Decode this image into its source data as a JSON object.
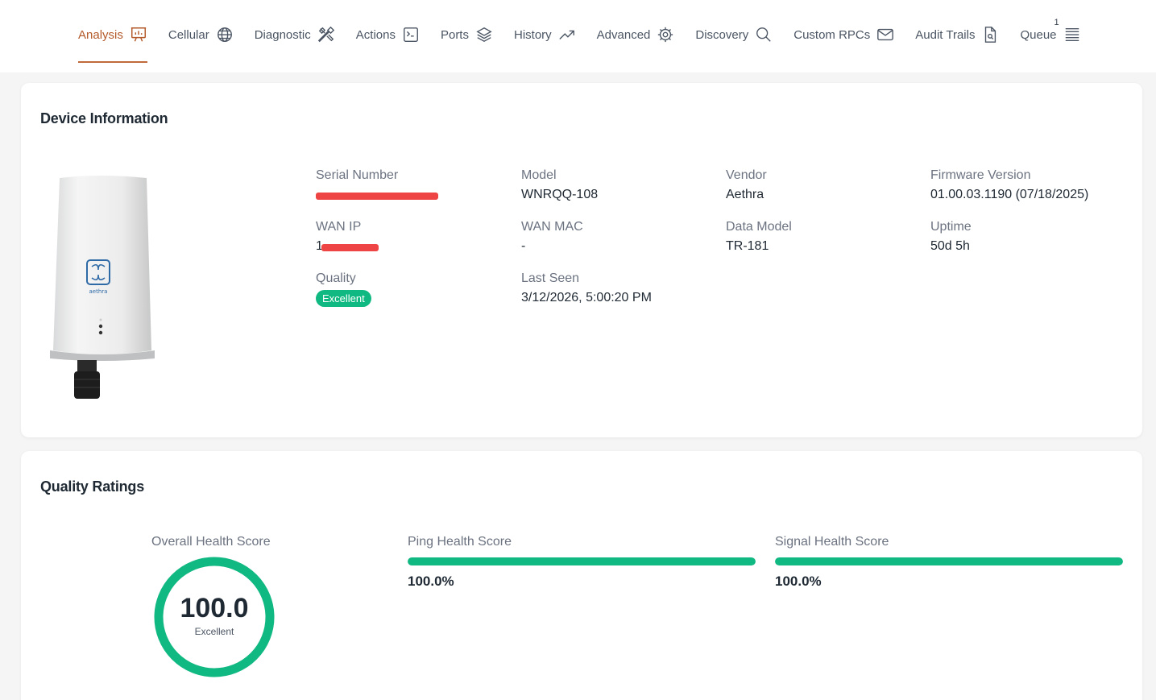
{
  "tabs": [
    {
      "label": "Analysis",
      "icon": "presentation-chart-icon",
      "active": true
    },
    {
      "label": "Cellular",
      "icon": "globe-icon"
    },
    {
      "label": "Diagnostic",
      "icon": "tools-icon"
    },
    {
      "label": "Actions",
      "icon": "terminal-icon"
    },
    {
      "label": "Ports",
      "icon": "layers-icon"
    },
    {
      "label": "History",
      "icon": "trending-up-icon"
    },
    {
      "label": "Advanced",
      "icon": "gear-icon"
    },
    {
      "label": "Discovery",
      "icon": "search-icon"
    },
    {
      "label": "Custom RPCs",
      "icon": "mail-icon"
    },
    {
      "label": "Audit Trails",
      "icon": "file-search-icon"
    },
    {
      "label": "Queue",
      "icon": "list-icon",
      "count": "1"
    }
  ],
  "device_info": {
    "title": "Device Information",
    "serial_label": "Serial Number",
    "serial_value": "",
    "model_label": "Model",
    "model_value": "WNRQQ-108",
    "vendor_label": "Vendor",
    "vendor_value": "Aethra",
    "firmware_label": "Firmware Version",
    "firmware_value": "01.00.03.1190 (07/18/2025)",
    "wan_ip_label": "WAN IP",
    "wan_ip_value": "1",
    "wan_mac_label": "WAN MAC",
    "wan_mac_value": "-",
    "data_model_label": "Data Model",
    "data_model_value": "TR-181",
    "uptime_label": "Uptime",
    "uptime_value": "50d 5h",
    "quality_label": "Quality",
    "quality_value": "Excellent",
    "last_seen_label": "Last Seen",
    "last_seen_value": "3/12/2026, 5:00:20 PM",
    "device_brand": "aethra"
  },
  "quality": {
    "title": "Quality Ratings",
    "overall_label": "Overall Health Score",
    "overall_value": "100.0",
    "overall_fraction": 1.0,
    "overall_rating": "Excellent",
    "ping_label": "Ping Health Score",
    "ping_value": "100.0%",
    "ping_fraction": 1.0,
    "signal_label": "Signal Health Score",
    "signal_value": "100.0%",
    "signal_fraction": 1.0
  },
  "colors": {
    "accent": "#c06a3c",
    "success": "#10b981",
    "redaction": "#ef4444"
  }
}
